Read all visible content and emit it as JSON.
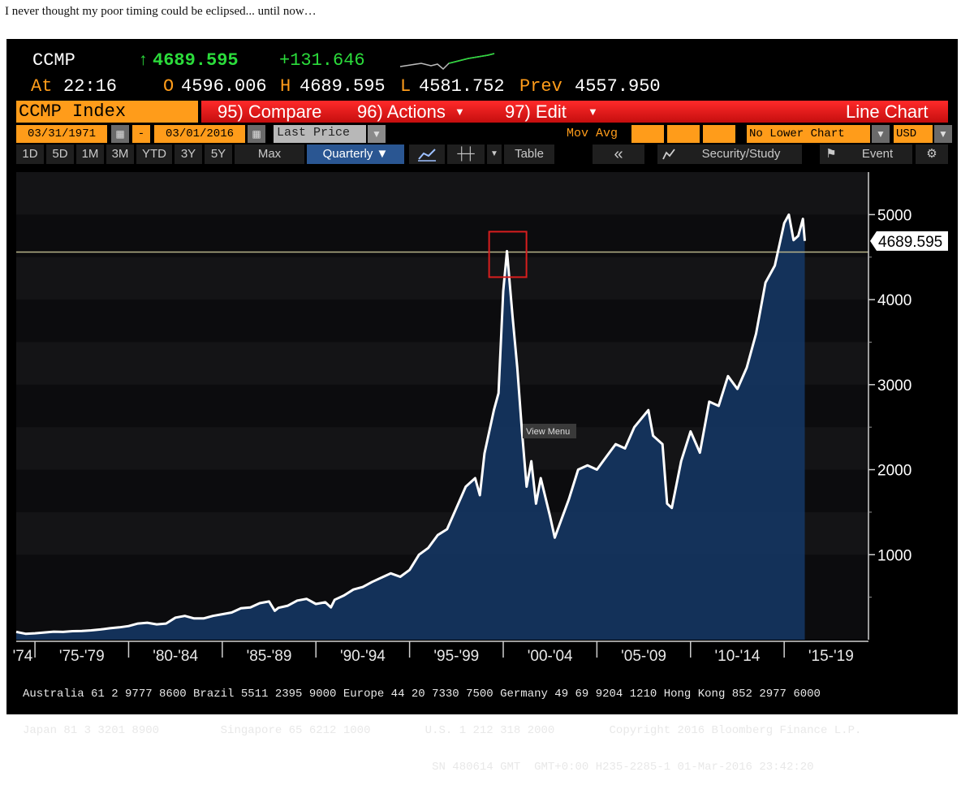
{
  "caption": "I never thought my poor timing could be eclipsed... until now…",
  "header": {
    "ticker": "CCMP",
    "last": "4689.595",
    "change": "+131.646",
    "time_label": "At",
    "time": "22:16",
    "open_label": "O",
    "open": "4596.006",
    "high_label": "H",
    "high": "4689.595",
    "low_label": "L",
    "low": "4581.752",
    "prev_label": "Prev",
    "prev": "4557.950"
  },
  "menubar": {
    "index_label": "CCMP Index",
    "compare": "95) Compare",
    "actions": "96) Actions",
    "edit": "97) Edit",
    "chart_type": "Line Chart"
  },
  "controls": {
    "start_date": "03/31/1971",
    "dash": "-",
    "end_date": "03/01/2016",
    "field": "Last Price",
    "mov_avg": "Mov Avg",
    "lower_chart": "No Lower Chart",
    "currency": "USD"
  },
  "toolbar": {
    "ranges": [
      "1D",
      "5D",
      "1M",
      "3M",
      "YTD",
      "3Y",
      "5Y",
      "Max"
    ],
    "period": "Quarterly ▼",
    "table": "Table",
    "back": "«",
    "security_study": "Security/Study",
    "event": "Event",
    "gear": "⚙"
  },
  "chart_tooltip": "View Menu",
  "footer": {
    "line1": "Australia 61 2 9777 8600 Brazil 5511 2395 9000 Europe 44 20 7330 7500 Germany 49 69 9204 1210 Hong Kong 852 2977 6000",
    "line2": "Japan 81 3 3201 8900         Singapore 65 6212 1000        U.S. 1 212 318 2000        Copyright 2016 Bloomberg Finance L.P.",
    "line3": "                                                            SN 480614 GMT  GMT+0:00 H235-2285-1 01-Mar-2016 23:42:20"
  },
  "colors": {
    "background": "#000000",
    "line": "#ffffff",
    "fill": "#14345e",
    "reference_line": "#b8b48a",
    "highlight_box": "#d81e1e",
    "accent_orange": "#ff9c1a",
    "menu_red": "#e01818"
  },
  "chart_data": {
    "type": "area",
    "title": "CCMP Index",
    "xlabel": "",
    "ylabel": "",
    "ylim": [
      0,
      5500
    ],
    "xlim": [
      1974.0,
      2019.5
    ],
    "yticks": [
      1000,
      2000,
      3000,
      4000,
      5000
    ],
    "x_period_labels": [
      "'74",
      "'75-'79",
      "'80-'84",
      "'85-'89",
      "'90-'94",
      "'95-'99",
      "'00-'04",
      "'05-'09",
      "'10-'14",
      "'15-'19"
    ],
    "current_value_label": "4689.595",
    "reference_value": 4560,
    "highlight": {
      "x": 2000.2,
      "y": 4570
    },
    "grid": false,
    "series": [
      {
        "x": [
          1974.0,
          1974.5,
          1975.0,
          1975.5,
          1976.0,
          1976.5,
          1977.0,
          1977.5,
          1978.0,
          1978.5,
          1979.0,
          1979.5,
          1980.0,
          1980.5,
          1981.0,
          1981.5,
          1982.0,
          1982.5,
          1983.0,
          1983.5,
          1984.0,
          1984.5,
          1985.0,
          1985.5,
          1986.0,
          1986.5,
          1987.0,
          1987.5,
          1987.8,
          1988.0,
          1988.5,
          1989.0,
          1989.5,
          1990.0,
          1990.5,
          1990.8,
          1991.0,
          1991.5,
          1992.0,
          1992.5,
          1993.0,
          1993.5,
          1994.0,
          1994.5,
          1995.0,
          1995.5,
          1996.0,
          1996.5,
          1997.0,
          1997.5,
          1998.0,
          1998.5,
          1998.75,
          1999.0,
          1999.5,
          1999.75,
          2000.0,
          2000.2,
          2000.5,
          2000.75,
          2001.0,
          2001.25,
          2001.5,
          2001.75,
          2002.0,
          2002.5,
          2002.75,
          2003.0,
          2003.5,
          2004.0,
          2004.5,
          2005.0,
          2005.5,
          2006.0,
          2006.5,
          2007.0,
          2007.75,
          2008.0,
          2008.5,
          2008.75,
          2009.0,
          2009.5,
          2010.0,
          2010.5,
          2011.0,
          2011.5,
          2012.0,
          2012.5,
          2013.0,
          2013.5,
          2014.0,
          2014.5,
          2015.0,
          2015.25,
          2015.5,
          2015.75,
          2016.0,
          2016.1
        ],
        "values": [
          92,
          70,
          75,
          85,
          95,
          92,
          100,
          103,
          110,
          120,
          135,
          145,
          160,
          190,
          200,
          180,
          190,
          260,
          280,
          250,
          250,
          280,
          300,
          320,
          370,
          380,
          430,
          450,
          340,
          375,
          400,
          460,
          480,
          420,
          440,
          380,
          470,
          520,
          590,
          620,
          680,
          730,
          780,
          740,
          820,
          1000,
          1080,
          1230,
          1300,
          1550,
          1800,
          1900,
          1700,
          2190,
          2700,
          2900,
          4100,
          4570,
          3800,
          3200,
          2450,
          1800,
          2100,
          1600,
          1900,
          1450,
          1200,
          1350,
          1650,
          2000,
          2050,
          2000,
          2150,
          2300,
          2250,
          2500,
          2700,
          2400,
          2300,
          1600,
          1550,
          2100,
          2450,
          2200,
          2800,
          2750,
          3100,
          2950,
          3200,
          3600,
          4200,
          4400,
          4900,
          5000,
          4700,
          4750,
          4950,
          4690
        ]
      }
    ]
  }
}
